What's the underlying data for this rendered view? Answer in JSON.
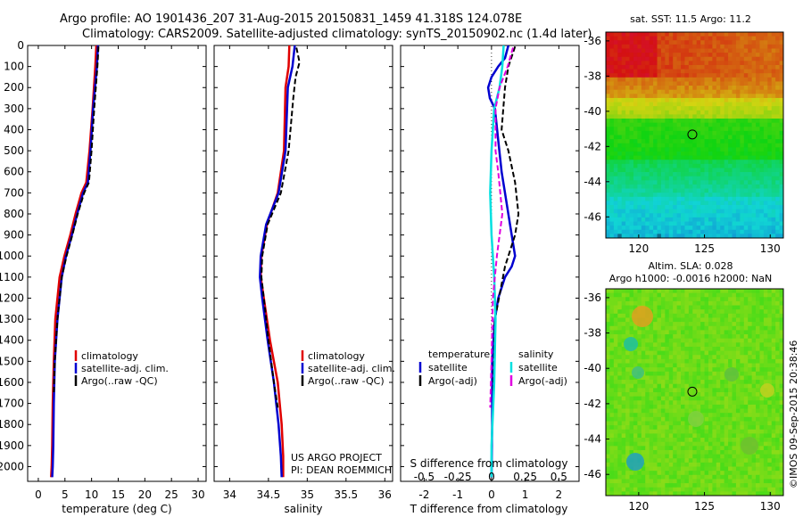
{
  "figure": {
    "title_line1": "Argo profile: AO 1901436_207 31-Aug-2015 20150831_1459 41.318S 124.078E",
    "title_line2": "Climatology: CARS2009. Satellite-adjusted climatology: synTS_20150902.nc (1.4d later)",
    "credit": "US ARGO PROJECT",
    "pi": "PI: DEAN ROEMMICH",
    "stamp": "©IMOS 09-Sep-2015 20:38:46"
  },
  "colors": {
    "climatology": "#e00000",
    "satellite": "#0000d0",
    "argo": "#000000",
    "sal_satellite": "#00e0e0",
    "sal_argo": "#e000e0"
  },
  "legend1": {
    "climatology": "climatology",
    "satellite": "satellite-adj. clim.",
    "argo": "Argo(..raw -QC)"
  },
  "legend2": {
    "climatology": "climatology",
    "satellite": "satellite-adj. clim.",
    "argo": "Argo(..raw -QC)"
  },
  "legend3": {
    "temp_header": "temperature",
    "temp_sat": "satellite",
    "temp_argo": "Argo(-adj)",
    "sal_header": "salinity",
    "sal_sat": "satellite",
    "sal_argo": "Argo(-adj)"
  },
  "chart_data": [
    {
      "type": "line",
      "xlabel": "temperature (deg C)",
      "ylabel": "",
      "xlim": [
        -2,
        31.5
      ],
      "ylim": [
        2070,
        0
      ],
      "xticks": [
        0,
        5,
        10,
        15,
        20,
        25,
        30
      ],
      "yticks": [
        0,
        100,
        200,
        300,
        400,
        500,
        600,
        700,
        800,
        900,
        1000,
        1100,
        1200,
        1300,
        1400,
        1500,
        1600,
        1700,
        1800,
        1900,
        2000
      ],
      "series": [
        {
          "name": "climatology",
          "style": "solid",
          "color": "#e00000",
          "x": [
            10.9,
            10.7,
            10.2,
            9.6,
            9.0,
            8.1,
            7.0,
            6.0,
            4.9,
            4.0,
            3.2,
            2.9,
            2.7,
            2.6,
            2.5,
            2.4
          ],
          "y": [
            0,
            100,
            300,
            500,
            650,
            700,
            800,
            900,
            1000,
            1100,
            1300,
            1500,
            1700,
            1900,
            2000,
            2050
          ]
        },
        {
          "name": "satellite-adj. clim.",
          "style": "solid",
          "color": "#0000d0",
          "x": [
            11.2,
            11.0,
            10.3,
            9.8,
            9.3,
            8.4,
            7.3,
            6.3,
            5.2,
            4.4,
            3.6,
            3.1,
            2.9,
            2.8,
            2.7,
            2.6
          ],
          "y": [
            0,
            100,
            300,
            500,
            650,
            700,
            800,
            900,
            1000,
            1100,
            1300,
            1500,
            1700,
            1900,
            2000,
            2050
          ]
        },
        {
          "name": "Argo(..raw -QC)",
          "style": "dashed",
          "color": "#000000",
          "x": [
            11.3,
            11.1,
            10.5,
            10.0,
            9.5,
            8.6,
            7.4,
            6.4,
            5.3,
            4.4,
            3.6,
            3.1,
            2.9
          ],
          "y": [
            5,
            100,
            300,
            500,
            650,
            700,
            800,
            900,
            1000,
            1100,
            1300,
            1500,
            1650
          ]
        }
      ]
    },
    {
      "type": "line",
      "xlabel": "salinity",
      "ylabel": "",
      "xlim": [
        33.8,
        36.1
      ],
      "ylim": [
        2070,
        0
      ],
      "xticks": [
        34,
        34.5,
        35,
        35.5,
        36
      ],
      "series": [
        {
          "name": "climatology",
          "style": "solid",
          "color": "#e00000",
          "x": [
            34.77,
            34.76,
            34.72,
            34.7,
            34.62,
            34.48,
            34.41,
            34.4,
            34.44,
            34.52,
            34.62,
            34.67,
            34.69,
            34.69
          ],
          "y": [
            0,
            100,
            200,
            500,
            700,
            850,
            1000,
            1100,
            1200,
            1400,
            1600,
            1800,
            1950,
            2050
          ]
        },
        {
          "name": "satellite-adj. clim.",
          "style": "solid",
          "color": "#0000d0",
          "x": [
            34.84,
            34.81,
            34.75,
            34.72,
            34.63,
            34.47,
            34.4,
            34.39,
            34.42,
            34.49,
            34.57,
            34.63,
            34.66,
            34.67
          ],
          "y": [
            0,
            100,
            200,
            500,
            700,
            850,
            1000,
            1100,
            1200,
            1400,
            1600,
            1800,
            1950,
            2050
          ]
        },
        {
          "name": "Argo(..raw -QC)",
          "style": "dashed",
          "color": "#000000",
          "x": [
            34.86,
            34.9,
            34.85,
            34.82,
            34.76,
            34.66,
            34.49,
            34.42,
            34.41,
            34.44,
            34.5,
            34.57,
            34.62
          ],
          "y": [
            10,
            80,
            150,
            250,
            500,
            700,
            850,
            1000,
            1100,
            1200,
            1400,
            1600,
            1720
          ]
        }
      ]
    },
    {
      "type": "line",
      "xlabel": "T difference from climatology",
      "xlabel_top": "S difference from climatology",
      "ylabel": "",
      "xlim": [
        -2.7,
        2.6
      ],
      "ylim": [
        2070,
        0
      ],
      "xticks": [
        -2,
        -1,
        0,
        1,
        2
      ],
      "xticks_top": [
        -0.5,
        -0.25,
        0,
        0.25,
        0.5
      ],
      "series": [
        {
          "name": "T satellite",
          "style": "solid",
          "color": "#0000d0",
          "x": [
            0.5,
            0.4,
            0.2,
            0.0,
            -0.1,
            -0.05,
            0.1,
            0.2,
            0.3,
            0.4,
            0.6,
            0.7,
            0.6,
            0.4,
            0.2,
            0.1,
            0.02,
            0.02,
            0.0
          ],
          "y": [
            0,
            60,
            100,
            150,
            200,
            250,
            300,
            450,
            600,
            700,
            900,
            1000,
            1050,
            1100,
            1200,
            1300,
            1500,
            1800,
            2050
          ]
        },
        {
          "name": "T Argo(-adj)",
          "style": "dashed",
          "color": "#000000",
          "x": [
            0.7,
            0.5,
            0.4,
            0.3,
            0.5,
            0.7,
            0.8,
            0.7,
            0.4,
            0.1,
            0.05
          ],
          "y": [
            5,
            100,
            200,
            400,
            500,
            650,
            800,
            900,
            1050,
            1300,
            1650
          ]
        },
        {
          "name": "S satellite",
          "style": "solid",
          "color": "#00e0e0",
          "x": [
            0.09,
            0.08,
            0.06,
            0.02,
            0.0,
            -0.01,
            0.0,
            0.01,
            0.02,
            0.03,
            0.02,
            0.0,
            0.0
          ],
          "y": [
            0,
            100,
            200,
            300,
            500,
            700,
            900,
            1000,
            1100,
            1300,
            1600,
            1900,
            2050
          ]
        },
        {
          "name": "S Argo(-adj)",
          "style": "dashed",
          "color": "#e000e0",
          "x": [
            0.16,
            0.12,
            0.06,
            0.03,
            0.03,
            0.05,
            0.08,
            0.04,
            0.01,
            0.0,
            -0.01
          ],
          "y": [
            10,
            100,
            200,
            300,
            500,
            600,
            800,
            1000,
            1200,
            1500,
            1720
          ]
        }
      ]
    },
    {
      "type": "heatmap",
      "title": "sat. SST: 11.5 Argo: 11.2",
      "xticks": [
        120,
        125,
        130
      ],
      "yticks": [
        -36,
        -38,
        -40,
        -42,
        -44,
        -46
      ],
      "xlim": [
        117.5,
        131
      ],
      "ylim": [
        -47.2,
        -35.5
      ],
      "marker": {
        "x": 124.078,
        "y": -41.318
      }
    },
    {
      "type": "heatmap",
      "title": "Altim. SLA: 0.028",
      "subtitle": "Argo h1000: -0.0016 h2000: NaN",
      "xticks": [
        120,
        125,
        130
      ],
      "yticks": [
        -36,
        -38,
        -40,
        -42,
        -44,
        -46
      ],
      "xlim": [
        117.5,
        131
      ],
      "ylim": [
        -47.2,
        -35.5
      ],
      "marker": {
        "x": 124.078,
        "y": -41.318
      }
    }
  ]
}
